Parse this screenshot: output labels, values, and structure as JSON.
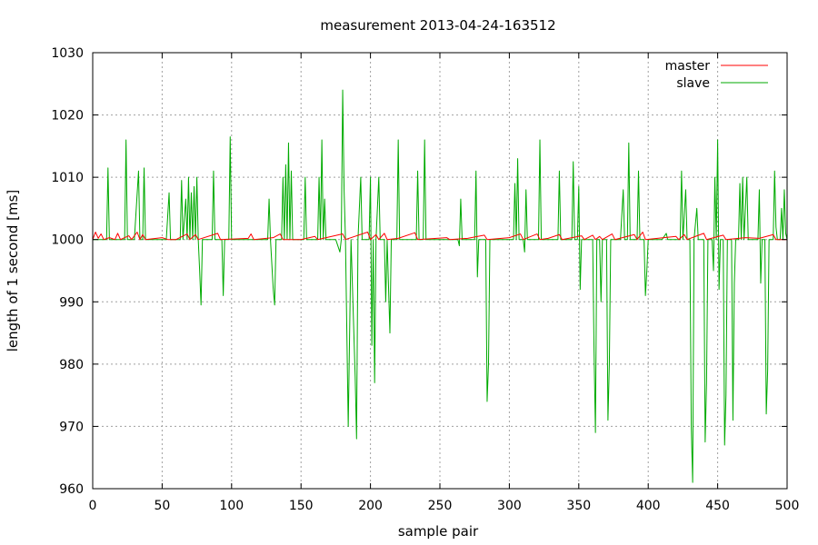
{
  "chart_data": {
    "type": "line",
    "title": "measurement 2013-04-24-163512",
    "xlabel": "sample pair",
    "ylabel": "length of 1 second [ms]",
    "xlim": [
      0,
      500
    ],
    "ylim": [
      960,
      1030
    ],
    "xticks": [
      0,
      50,
      100,
      150,
      200,
      250,
      300,
      350,
      400,
      450,
      500
    ],
    "yticks": [
      960,
      970,
      980,
      990,
      1000,
      1010,
      1020,
      1030
    ],
    "grid": true,
    "legend_position": "top-right",
    "series": [
      {
        "name": "master",
        "color": "#ff0000",
        "points": [
          [
            0,
            1000
          ],
          [
            2,
            1001.2
          ],
          [
            4,
            1000.2
          ],
          [
            6,
            1000.9
          ],
          [
            8,
            1000
          ],
          [
            12,
            1000.3
          ],
          [
            16,
            1000
          ],
          [
            18,
            1001
          ],
          [
            20,
            1000
          ],
          [
            26,
            1000.6
          ],
          [
            28,
            1000
          ],
          [
            32,
            1001.2
          ],
          [
            34,
            1000
          ],
          [
            36,
            1000.8
          ],
          [
            38,
            1000
          ],
          [
            50,
            1000.3
          ],
          [
            54,
            1000
          ],
          [
            60,
            1000
          ],
          [
            68,
            1000.9
          ],
          [
            70,
            1000
          ],
          [
            74,
            1000.8
          ],
          [
            76,
            1000
          ],
          [
            90,
            1001
          ],
          [
            92,
            1000
          ],
          [
            112,
            1000.2
          ],
          [
            114,
            1000.9
          ],
          [
            116,
            1000
          ],
          [
            130,
            1000.3
          ],
          [
            135,
            1000.9
          ],
          [
            137,
            1000
          ],
          [
            150,
            1000
          ],
          [
            160,
            1000.5
          ],
          [
            162,
            1000
          ],
          [
            180,
            1000.9
          ],
          [
            182,
            1000
          ],
          [
            198,
            1001.2
          ],
          [
            200,
            1000
          ],
          [
            204,
            1000.8
          ],
          [
            206,
            1000
          ],
          [
            210,
            1001
          ],
          [
            212,
            1000
          ],
          [
            220,
            1000.2
          ],
          [
            232,
            1001.1
          ],
          [
            234,
            1000
          ],
          [
            255,
            1000.3
          ],
          [
            257,
            1000
          ],
          [
            270,
            1000.2
          ],
          [
            282,
            1000.7
          ],
          [
            284,
            1000
          ],
          [
            300,
            1000.3
          ],
          [
            308,
            1000.9
          ],
          [
            310,
            1000
          ],
          [
            320,
            1000.9
          ],
          [
            322,
            1000
          ],
          [
            328,
            1000.2
          ],
          [
            336,
            1000.8
          ],
          [
            338,
            1000
          ],
          [
            352,
            1000.6
          ],
          [
            354,
            1000
          ],
          [
            360,
            1000.7
          ],
          [
            362,
            1000
          ],
          [
            365,
            1000.5
          ],
          [
            367,
            1000
          ],
          [
            374,
            1000.9
          ],
          [
            376,
            1000
          ],
          [
            390,
            1000.8
          ],
          [
            392,
            1000
          ],
          [
            396,
            1001.2
          ],
          [
            398,
            1000
          ],
          [
            420,
            1000.5
          ],
          [
            422,
            1000
          ],
          [
            426,
            1000.8
          ],
          [
            428,
            1000
          ],
          [
            440,
            1001
          ],
          [
            442,
            1000
          ],
          [
            454,
            1000.7
          ],
          [
            456,
            1000
          ],
          [
            470,
            1000.3
          ],
          [
            480,
            1000.2
          ],
          [
            490,
            1000.8
          ],
          [
            492,
            1000
          ],
          [
            500,
            1000
          ]
        ]
      },
      {
        "name": "slave",
        "color": "#00aa00",
        "points": [
          [
            0,
            1000
          ],
          [
            10,
            1000
          ],
          [
            11,
            1011.5
          ],
          [
            12,
            1000
          ],
          [
            16,
            1000
          ],
          [
            23,
            1000
          ],
          [
            24,
            1016
          ],
          [
            25,
            1000
          ],
          [
            30,
            1000
          ],
          [
            33,
            1011
          ],
          [
            34,
            1000
          ],
          [
            36,
            1000
          ],
          [
            37,
            1011.5
          ],
          [
            38,
            1000
          ],
          [
            53,
            1000
          ],
          [
            55,
            1007.5
          ],
          [
            56,
            1000
          ],
          [
            58,
            1000
          ],
          [
            63,
            1000
          ],
          [
            64,
            1009.5
          ],
          [
            65,
            1000
          ],
          [
            67,
            1006.5
          ],
          [
            68,
            1000
          ],
          [
            69,
            1010
          ],
          [
            70,
            1000
          ],
          [
            71,
            1007.5
          ],
          [
            72,
            1000
          ],
          [
            73,
            1008.5
          ],
          [
            74,
            1000
          ],
          [
            75,
            1010
          ],
          [
            76,
            1000
          ],
          [
            77,
            995
          ],
          [
            78,
            989.5
          ],
          [
            79,
            1000
          ],
          [
            86,
            1000
          ],
          [
            87,
            1011
          ],
          [
            88,
            1000
          ],
          [
            93,
            1000
          ],
          [
            94,
            991
          ],
          [
            95,
            1000
          ],
          [
            98,
            1000
          ],
          [
            99,
            1016.5
          ],
          [
            100,
            1000
          ],
          [
            113,
            1000
          ],
          [
            126,
            1000
          ],
          [
            127,
            1006.5
          ],
          [
            128,
            1000
          ],
          [
            130,
            992
          ],
          [
            131,
            989.5
          ],
          [
            132,
            1000
          ],
          [
            136,
            1000
          ],
          [
            137,
            1010
          ],
          [
            138,
            1000
          ],
          [
            139,
            1012
          ],
          [
            140,
            1000
          ],
          [
            141,
            1015.5
          ],
          [
            142,
            1000
          ],
          [
            143,
            1011
          ],
          [
            144,
            1000
          ],
          [
            152,
            1000
          ],
          [
            153,
            1010
          ],
          [
            154,
            1000
          ],
          [
            162,
            1000
          ],
          [
            163,
            1010
          ],
          [
            164,
            1000
          ],
          [
            165,
            1016
          ],
          [
            166,
            1000
          ],
          [
            167,
            1006.5
          ],
          [
            168,
            1000
          ],
          [
            175,
            1000
          ],
          [
            178,
            998
          ],
          [
            179,
            1000
          ],
          [
            180,
            1024
          ],
          [
            181,
            1008
          ],
          [
            182,
            1000
          ],
          [
            184,
            970
          ],
          [
            185,
            985
          ],
          [
            186,
            1000
          ],
          [
            189,
            978
          ],
          [
            190,
            968
          ],
          [
            191,
            1000
          ],
          [
            193,
            1010
          ],
          [
            194,
            1000
          ],
          [
            199,
            1000
          ],
          [
            200,
            1010
          ],
          [
            201,
            983
          ],
          [
            202,
            1000
          ],
          [
            203,
            977
          ],
          [
            204,
            1000
          ],
          [
            206,
            1010
          ],
          [
            207,
            1000
          ],
          [
            210,
            1000
          ],
          [
            211,
            990
          ],
          [
            212,
            1000
          ],
          [
            214,
            985
          ],
          [
            215,
            1000
          ],
          [
            219,
            1000
          ],
          [
            220,
            1016
          ],
          [
            221,
            1000
          ],
          [
            233,
            1000
          ],
          [
            234,
            1011
          ],
          [
            235,
            1000
          ],
          [
            238,
            1000
          ],
          [
            239,
            1016
          ],
          [
            240,
            1000
          ],
          [
            263,
            1000
          ],
          [
            264,
            999
          ],
          [
            265,
            1006.5
          ],
          [
            266,
            1000
          ],
          [
            275,
            1000
          ],
          [
            276,
            1011
          ],
          [
            277,
            994
          ],
          [
            278,
            1000
          ],
          [
            283,
            1000
          ],
          [
            284,
            974
          ],
          [
            285,
            980
          ],
          [
            286,
            1000
          ],
          [
            290,
            1000
          ],
          [
            303,
            1000
          ],
          [
            304,
            1009
          ],
          [
            305,
            1000
          ],
          [
            306,
            1013
          ],
          [
            307,
            1000
          ],
          [
            310,
            1000
          ],
          [
            311,
            998
          ],
          [
            312,
            1008
          ],
          [
            313,
            1000
          ],
          [
            321,
            1000
          ],
          [
            322,
            1016
          ],
          [
            323,
            1000
          ],
          [
            335,
            1000
          ],
          [
            336,
            1011
          ],
          [
            337,
            1000
          ],
          [
            345,
            1000
          ],
          [
            346,
            1012.5
          ],
          [
            347,
            1000
          ],
          [
            349,
            1000
          ],
          [
            350,
            1008.5
          ],
          [
            351,
            992
          ],
          [
            352,
            1000
          ],
          [
            360,
            1000
          ],
          [
            361,
            982
          ],
          [
            362,
            969
          ],
          [
            363,
            1000
          ],
          [
            365,
            1000
          ],
          [
            366,
            990
          ],
          [
            367,
            1000
          ],
          [
            370,
            1000
          ],
          [
            371,
            971
          ],
          [
            372,
            980
          ],
          [
            373,
            1000
          ],
          [
            380,
            1000
          ],
          [
            382,
            1008
          ],
          [
            383,
            1000
          ],
          [
            385,
            1000
          ],
          [
            386,
            1015.5
          ],
          [
            387,
            1000
          ],
          [
            392,
            1000
          ],
          [
            393,
            1011
          ],
          [
            394,
            1000
          ],
          [
            397,
            1000
          ],
          [
            398,
            991
          ],
          [
            399,
            995
          ],
          [
            400,
            1000
          ],
          [
            410,
            1000
          ],
          [
            413,
            1001
          ],
          [
            414,
            1000
          ],
          [
            423,
            1000
          ],
          [
            424,
            1011
          ],
          [
            425,
            1000
          ],
          [
            427,
            1008
          ],
          [
            428,
            1000
          ],
          [
            430,
            1000
          ],
          [
            431,
            970
          ],
          [
            432,
            961
          ],
          [
            433,
            1000
          ],
          [
            435,
            1005
          ],
          [
            436,
            1000
          ],
          [
            440,
            1000
          ],
          [
            441,
            967.5
          ],
          [
            442,
            977
          ],
          [
            443,
            1000
          ],
          [
            446,
            1000
          ],
          [
            447,
            995
          ],
          [
            448,
            1010
          ],
          [
            449,
            1000
          ],
          [
            450,
            1016
          ],
          [
            451,
            992
          ],
          [
            452,
            1000
          ],
          [
            454,
            1000
          ],
          [
            455,
            967
          ],
          [
            456,
            975
          ],
          [
            457,
            1000
          ],
          [
            460,
            1000
          ],
          [
            461,
            971
          ],
          [
            462,
            993
          ],
          [
            463,
            1000
          ],
          [
            465,
            1000
          ],
          [
            466,
            1009
          ],
          [
            467,
            1000
          ],
          [
            468,
            1010
          ],
          [
            469,
            1000
          ],
          [
            471,
            1010
          ],
          [
            472,
            1000
          ],
          [
            479,
            1000
          ],
          [
            480,
            1008
          ],
          [
            481,
            993
          ],
          [
            482,
            1000
          ],
          [
            484,
            1000
          ],
          [
            485,
            972
          ],
          [
            486,
            979
          ],
          [
            487,
            1000
          ],
          [
            490,
            1000
          ],
          [
            491,
            1011
          ],
          [
            492,
            1002
          ],
          [
            493,
            1000
          ],
          [
            495,
            1000
          ],
          [
            496,
            1005
          ],
          [
            497,
            1000
          ],
          [
            498,
            1008
          ],
          [
            499,
            1001
          ],
          [
            500,
            1000
          ]
        ]
      }
    ]
  }
}
